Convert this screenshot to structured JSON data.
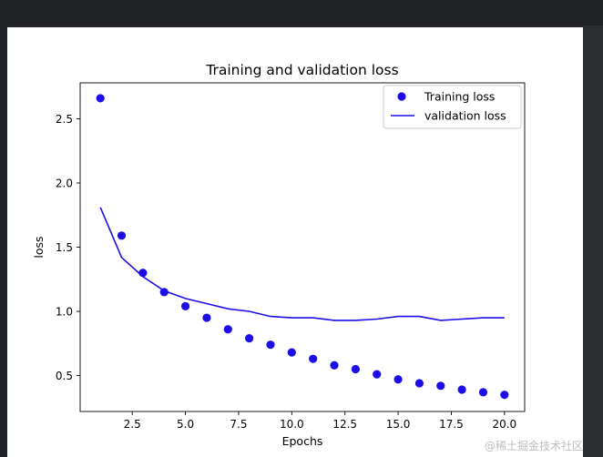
{
  "window": {
    "watermark": "@稀土掘金技术社区"
  },
  "chart_data": {
    "type": "line",
    "title": "Training and validation loss",
    "xlabel": "Epochs",
    "ylabel": "loss",
    "xlim": [
      0.05,
      20.95
    ],
    "ylim": [
      0.22,
      2.78
    ],
    "xticks": [
      2.5,
      5.0,
      7.5,
      10.0,
      12.5,
      15.0,
      17.5,
      20.0
    ],
    "xtick_labels": [
      "2.5",
      "5.0",
      "7.5",
      "10.0",
      "12.5",
      "15.0",
      "17.5",
      "20.0"
    ],
    "yticks": [
      0.5,
      1.0,
      1.5,
      2.0,
      2.5
    ],
    "ytick_labels": [
      "0.5",
      "1.0",
      "1.5",
      "2.0",
      "2.5"
    ],
    "grid": false,
    "legend_position": "top-right",
    "series_color": "#1c0ee6",
    "series": [
      {
        "name": "Training loss",
        "style": "markers",
        "x": [
          1,
          2,
          3,
          4,
          5,
          6,
          7,
          8,
          9,
          10,
          11,
          12,
          13,
          14,
          15,
          16,
          17,
          18,
          19,
          20
        ],
        "values": [
          2.66,
          1.59,
          1.3,
          1.15,
          1.04,
          0.95,
          0.86,
          0.79,
          0.74,
          0.68,
          0.63,
          0.58,
          0.55,
          0.51,
          0.47,
          0.44,
          0.42,
          0.39,
          0.37,
          0.35
        ]
      },
      {
        "name": "validation loss",
        "style": "line",
        "x": [
          1,
          2,
          3,
          4,
          5,
          6,
          7,
          8,
          9,
          10,
          11,
          12,
          13,
          14,
          15,
          16,
          17,
          18,
          19,
          20
        ],
        "values": [
          1.81,
          1.42,
          1.27,
          1.16,
          1.1,
          1.06,
          1.02,
          1.0,
          0.96,
          0.95,
          0.95,
          0.93,
          0.93,
          0.94,
          0.96,
          0.96,
          0.93,
          0.94,
          0.95,
          0.95
        ]
      }
    ]
  }
}
